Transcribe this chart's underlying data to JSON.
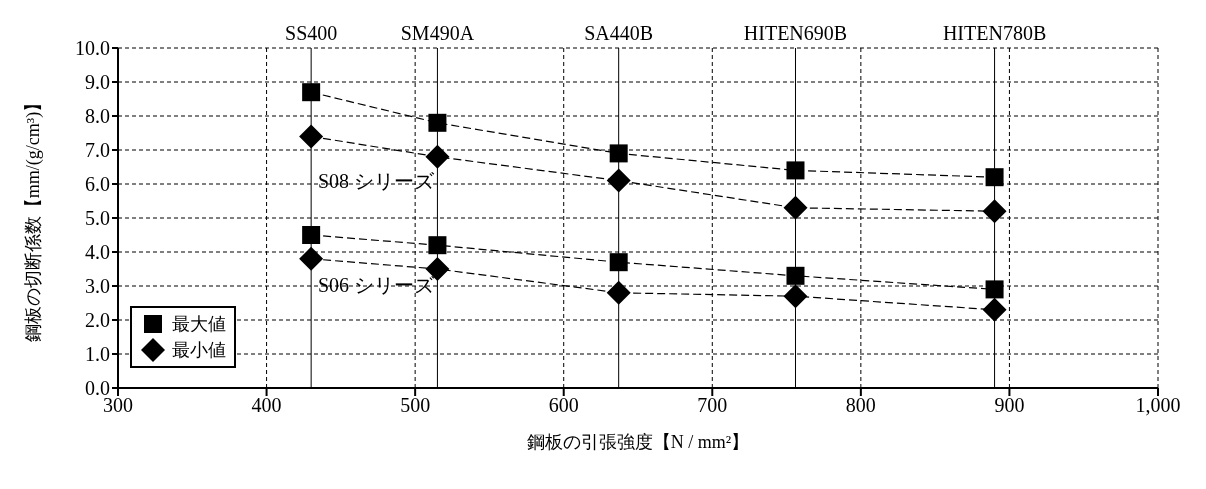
{
  "chart_data": {
    "type": "line",
    "xlabel": "鋼板の引張強度【N / mm²】",
    "ylabel": "鋼板の切断係数【mm/(g/cm³)】",
    "xlim": [
      300,
      1000
    ],
    "xticks": [
      300,
      400,
      500,
      600,
      700,
      800,
      900,
      {
        "value": 1000,
        "label": "1,000"
      }
    ],
    "ylim": [
      0,
      10
    ],
    "yticks": [
      {
        "value": 0,
        "label": "0.0"
      },
      {
        "value": 1,
        "label": "1.0"
      },
      {
        "value": 2,
        "label": "2.0"
      },
      {
        "value": 3,
        "label": "3.0"
      },
      {
        "value": 4,
        "label": "4.0"
      },
      {
        "value": 5,
        "label": "5.0"
      },
      {
        "value": 6,
        "label": "6.0"
      },
      {
        "value": 7,
        "label": "7.0"
      },
      {
        "value": 8,
        "label": "8.0"
      },
      {
        "value": 9,
        "label": "9.0"
      },
      {
        "value": 10,
        "label": "10.0"
      }
    ],
    "x": [
      430,
      515,
      637,
      756,
      890
    ],
    "series": [
      {
        "name": "最大値",
        "color": "#000000",
        "marker": "square",
        "values": [
          8.7,
          7.8,
          6.9,
          6.4,
          6.2
        ]
      },
      {
        "name": "最小値",
        "color": "#000000",
        "marker": "diamond",
        "values": [
          7.4,
          6.8,
          6.1,
          5.3,
          5.2
        ]
      },
      {
        "color": "#000000",
        "marker": "square",
        "values": [
          4.5,
          4.2,
          3.7,
          3.3,
          2.9
        ]
      },
      {
        "color": "#000000",
        "marker": "diamond",
        "values": [
          3.8,
          3.5,
          2.8,
          2.7,
          2.3
        ]
      }
    ],
    "line_style": "dashed",
    "grid": true,
    "legend": "bottom left",
    "ref_lines": [
      {
        "axis": "x",
        "value": 430,
        "label": "SS400"
      },
      {
        "axis": "x",
        "value": 515,
        "label": "SM490A"
      },
      {
        "axis": "x",
        "value": 637,
        "label": "SA440B"
      },
      {
        "axis": "x",
        "value": 756,
        "label": "HITEN690B"
      },
      {
        "axis": "x",
        "value": 890,
        "label": "HITEN780B"
      }
    ],
    "annotations": [
      "S08 シリーズ",
      "S06 シリーズ"
    ]
  }
}
